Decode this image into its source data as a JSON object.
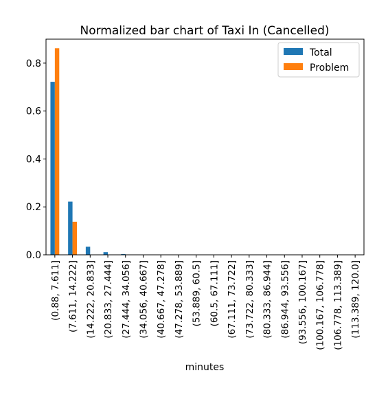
{
  "chart_data": {
    "type": "bar",
    "title": "Normalized bar chart of Taxi In (Cancelled)",
    "xlabel": "minutes",
    "ylabel": "",
    "ylim": [
      0,
      0.9
    ],
    "yticks": [
      0.0,
      0.2,
      0.4,
      0.6,
      0.8
    ],
    "ytick_labels": [
      "0.0",
      "0.2",
      "0.4",
      "0.6",
      "0.8"
    ],
    "grid": false,
    "legend_position": "top-right",
    "categories": [
      "(0.88, 7.611]",
      "(7.611, 14.222]",
      "(14.222, 20.833]",
      "(20.833, 27.444]",
      "(27.444, 34.056]",
      "(34.056, 40.667]",
      "(40.667, 47.278]",
      "(47.278, 53.889]",
      "(53.889, 60.5]",
      "(60.5, 67.111]",
      "(67.111, 73.722]",
      "(73.722, 80.333]",
      "(80.333, 86.944]",
      "(86.944, 93.556]",
      "(93.556, 100.167]",
      "(100.167, 106.778]",
      "(106.778, 113.389]",
      "(113.389, 120.0]"
    ],
    "series": [
      {
        "name": "Total",
        "color": "#1f77b4",
        "values": [
          0.722,
          0.222,
          0.034,
          0.011,
          0.003,
          0,
          0,
          0,
          0,
          0,
          0,
          0,
          0,
          0,
          0,
          0,
          0,
          0
        ]
      },
      {
        "name": "Problem",
        "color": "#ff7f0e",
        "values": [
          0.862,
          0.138,
          0,
          0,
          0,
          0,
          0,
          0,
          0,
          0,
          0,
          0,
          0,
          0,
          0,
          0,
          0,
          0
        ]
      }
    ]
  }
}
